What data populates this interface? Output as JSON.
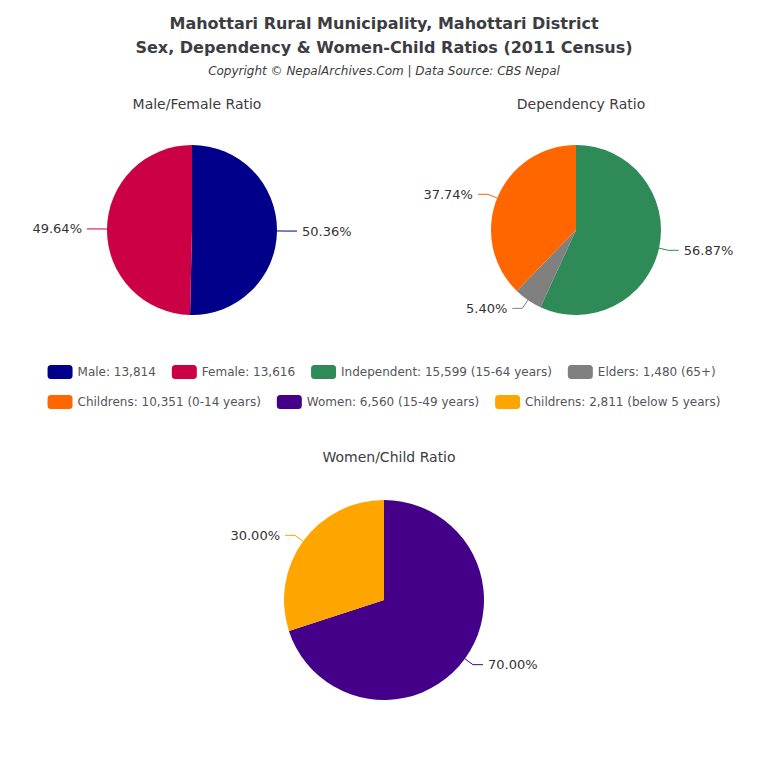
{
  "title": "Mahottari Rural Municipality, Mahottari District",
  "subtitle": "Sex, Dependency & Women-Child Ratios (2011 Census)",
  "annotations": [
    "Copyright © NepalArchives.Com | Data Source: CBS Nepal"
  ],
  "legend": "center",
  "chart_data": [
    {
      "type": "pie",
      "title": "Male/Female Ratio",
      "categories": [
        "Male: 13,814",
        "Female: 13,616"
      ],
      "values": [
        50.36,
        49.64
      ],
      "value_labels": [
        "50.36%",
        "49.64%"
      ],
      "colors": [
        "#00008B",
        "#CC0044"
      ],
      "data_labels": true
    },
    {
      "type": "pie",
      "title": "Dependency Ratio",
      "categories": [
        "Independent: 15,599 (15-64 years)",
        "Elders: 1,480 (65+)",
        "Childrens: 10,351 (0-14 years)"
      ],
      "values": [
        56.87,
        5.4,
        37.74
      ],
      "value_labels": [
        "56.87%",
        "5.40%",
        "37.74%"
      ],
      "colors": [
        "#2E8B57",
        "#808080",
        "#FF6600"
      ],
      "data_labels": true
    },
    {
      "type": "pie",
      "title": "Women/Child Ratio",
      "categories": [
        "Women: 6,560 (15-49 years)",
        "Childrens: 2,811 (below 5 years)"
      ],
      "values": [
        70.0,
        30.0
      ],
      "value_labels": [
        "70.00%",
        "30.00%"
      ],
      "colors": [
        "#440088",
        "#FFA500"
      ],
      "data_labels": true
    }
  ]
}
